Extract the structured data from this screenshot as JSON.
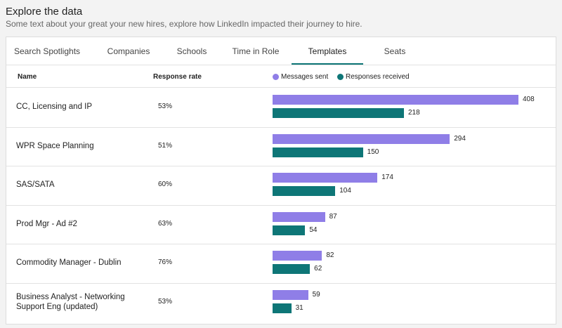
{
  "header": {
    "title": "Explore the data",
    "subtitle": "Some text about your great your new hires, explore how LinkedIn impacted their journey to hire."
  },
  "tabs": {
    "items": [
      "Search Spotlights",
      "Companies",
      "Schools",
      "Time in Role",
      "Templates",
      "Seats"
    ],
    "active": 4
  },
  "table": {
    "columns": [
      "Name",
      "Response rate"
    ],
    "response_rates": [
      {
        "value": 53,
        "label": "53%"
      },
      {
        "value": 51,
        "label": "51%"
      },
      {
        "value": 60,
        "label": "60%"
      },
      {
        "value": 63,
        "label": "63%"
      },
      {
        "value": 76,
        "label": "76%"
      },
      {
        "value": 53,
        "label": "53%"
      }
    ]
  },
  "chart_data": {
    "type": "bar",
    "orientation": "horizontal",
    "legend": "top",
    "categories": [
      "CC, Licensing and IP",
      "WPR Space Planning",
      "SAS/SATA",
      "Prod Mgr - Ad #2",
      "Commodity Manager - Dublin",
      "Business Analyst - Networking Support Eng (updated)"
    ],
    "series": [
      {
        "name": "Messages sent",
        "color": "#8f7ee7",
        "values": [
          408,
          294,
          174,
          87,
          82,
          59
        ]
      },
      {
        "name": "Responses received",
        "color": "#0e7677",
        "values": [
          218,
          150,
          104,
          54,
          62,
          31
        ]
      }
    ]
  }
}
